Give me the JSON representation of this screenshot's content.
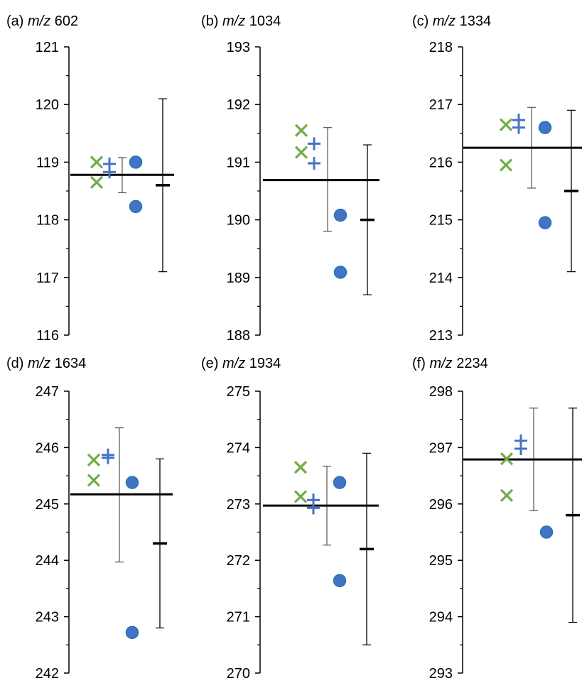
{
  "colors": {
    "cross": "#70AD47",
    "plus": "#4472C4",
    "circle_fill": "#4472C4",
    "circle_stroke": "#1F77B4",
    "mean_line": "#000000",
    "errorbar_thin": "#555555",
    "errorbar_thick": "#000000"
  },
  "chart_data": [
    {
      "type": "scatter",
      "title_prefix": "(a) ",
      "title_mz": "m/z",
      "title_value": " 602",
      "ylim": [
        116,
        121
      ],
      "yticks": [
        "116",
        "117",
        "118",
        "119",
        "120",
        "121"
      ],
      "crosses": [
        119.0,
        118.65
      ],
      "pluses": [
        118.97,
        118.83
      ],
      "circles": [
        119.0,
        118.23
      ],
      "mean": 118.78,
      "errorbar_1": {
        "center": 118.78,
        "low": 118.47,
        "high": 119.08
      },
      "errorbar_2": {
        "center": 118.6,
        "low": 117.1,
        "high": 120.1
      }
    },
    {
      "type": "scatter",
      "title_prefix": "(b) ",
      "title_mz": "m/z",
      "title_value": " 1034",
      "ylim": [
        188,
        193
      ],
      "yticks": [
        "188",
        "189",
        "190",
        "191",
        "192",
        "193"
      ],
      "crosses": [
        191.55,
        191.17
      ],
      "pluses": [
        191.32,
        190.98
      ],
      "circles": [
        190.08,
        189.09
      ],
      "mean": 190.69,
      "errorbar_1": {
        "center": 190.69,
        "low": 189.8,
        "high": 191.6
      },
      "errorbar_2": {
        "center": 190.0,
        "low": 188.7,
        "high": 191.3
      }
    },
    {
      "type": "scatter",
      "title_prefix": "(c) ",
      "title_mz": "m/z",
      "title_value": " 1334",
      "ylim": [
        213,
        218
      ],
      "yticks": [
        "213",
        "214",
        "215",
        "216",
        "217",
        "218"
      ],
      "crosses": [
        216.65,
        215.95
      ],
      "pluses": [
        216.73,
        216.6
      ],
      "circles": [
        216.6,
        214.95
      ],
      "mean": 216.25,
      "errorbar_1": {
        "center": 216.25,
        "low": 215.55,
        "high": 216.95
      },
      "errorbar_2": {
        "center": 215.5,
        "low": 214.1,
        "high": 216.9
      }
    },
    {
      "type": "scatter",
      "title_prefix": "(d) ",
      "title_mz": "m/z",
      "title_value": " 1634",
      "ylim": [
        242,
        247
      ],
      "yticks": [
        "242",
        "243",
        "244",
        "245",
        "246",
        "247"
      ],
      "crosses": [
        245.78,
        245.42
      ],
      "pluses": [
        245.87,
        245.82
      ],
      "circles": [
        245.38,
        242.72
      ],
      "mean": 245.17,
      "errorbar_1": {
        "center": 245.17,
        "low": 243.97,
        "high": 246.35
      },
      "errorbar_2": {
        "center": 244.3,
        "low": 242.8,
        "high": 245.8
      }
    },
    {
      "type": "scatter",
      "title_prefix": "(e) ",
      "title_mz": "m/z",
      "title_value": " 1934",
      "ylim": [
        270,
        275
      ],
      "yticks": [
        "270",
        "271",
        "272",
        "273",
        "274",
        "275"
      ],
      "crosses": [
        273.65,
        273.13
      ],
      "pluses": [
        273.07,
        272.93
      ],
      "circles": [
        273.38,
        271.64
      ],
      "mean": 272.97,
      "errorbar_1": {
        "center": 272.97,
        "low": 272.27,
        "high": 273.67
      },
      "errorbar_2": {
        "center": 272.2,
        "low": 270.5,
        "high": 273.9
      }
    },
    {
      "type": "scatter",
      "title_prefix": "(f) ",
      "title_mz": "m/z",
      "title_value": " 2234",
      "ylim": [
        293,
        298
      ],
      "yticks": [
        "293",
        "294",
        "295",
        "296",
        "297",
        "298"
      ],
      "crosses": [
        296.8,
        296.15
      ],
      "pluses": [
        297.12,
        296.98
      ],
      "circles": [
        295.5
      ],
      "mean": 296.79,
      "errorbar_1": {
        "center": 296.79,
        "low": 295.88,
        "high": 297.7
      },
      "errorbar_2": {
        "center": 295.8,
        "low": 293.9,
        "high": 297.7
      }
    }
  ]
}
